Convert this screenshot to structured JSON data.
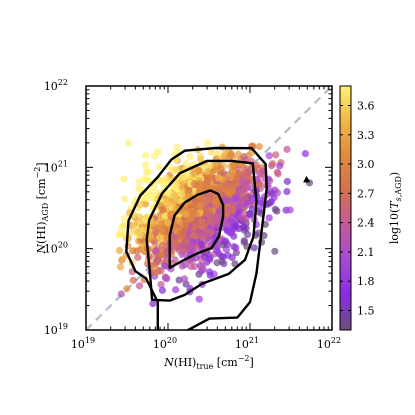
{
  "chart_data": {
    "type": "scatter",
    "title": "",
    "xlabel": "N(HI)_true [cm^-2]",
    "ylabel": "N(HI)_AGD [cm^-2]",
    "xscale": "log",
    "yscale": "log",
    "xlim": [
      1e+19,
      1e+22
    ],
    "ylim": [
      1e+19,
      1e+22
    ],
    "x_ticks": [
      {
        "value": 1e+19,
        "base": "10",
        "exp": "19"
      },
      {
        "value": 1e+20,
        "base": "10",
        "exp": "20"
      },
      {
        "value": 1e+21,
        "base": "10",
        "exp": "21"
      },
      {
        "value": 1e+22,
        "base": "10",
        "exp": "22"
      }
    ],
    "y_ticks": [
      {
        "value": 1e+19,
        "base": "10",
        "exp": "19"
      },
      {
        "value": 1e+20,
        "base": "10",
        "exp": "20"
      },
      {
        "value": 1e+21,
        "base": "10",
        "exp": "21"
      },
      {
        "value": 1e+22,
        "base": "10",
        "exp": "22"
      }
    ],
    "one_to_one_line": {
      "from": [
        1e+19,
        1e+19
      ],
      "to": [
        1e+22,
        1e+22
      ],
      "style": "dashed",
      "color": "#b0bcc8"
    },
    "colorbar": {
      "label": "log10(T_s,AGD)",
      "colormap": [
        "#6b4f7a",
        "#8a2be2",
        "#a64ad6",
        "#c45a9c",
        "#d4704f",
        "#e08a3c",
        "#f0b848",
        "#fff176"
      ],
      "range": [
        1.3,
        3.8
      ],
      "ticks": [
        "1.5",
        "1.8",
        "2.1",
        "2.4",
        "2.7",
        "3.0",
        "3.3",
        "3.6"
      ]
    },
    "contours": [
      {
        "level": "outer",
        "points": [
          [
            7.5e+19,
            8.2e+18
          ],
          [
            9e+19,
            9.7e+18
          ],
          [
            1.6e+20,
            9.5e+18
          ],
          [
            3.2e+20,
            1.38e+19
          ],
          [
            7e+20,
            1.42e+19
          ],
          [
            1e+21,
            2.2e+19
          ],
          [
            1.2e+21,
            5e+19
          ],
          [
            1.4e+21,
            1.8e+20
          ],
          [
            1.6e+21,
            5.5e+20
          ],
          [
            1.55e+21,
            1.1e+21
          ],
          [
            1.05e+21,
            1.72e+21
          ],
          [
            3.8e+20,
            1.73e+21
          ],
          [
            1.6e+20,
            1.6e+21
          ],
          [
            1.1e+20,
            1.25e+21
          ],
          [
            7.5e+19,
            7.6e+20
          ],
          [
            4.6e+19,
            4.5e+20
          ],
          [
            3.3e+19,
            2.2e+20
          ],
          [
            3.1e+19,
            9.2e+19
          ],
          [
            4e+19,
            5.3e+19
          ],
          [
            5.4e+19,
            4.3e+19
          ],
          [
            7.5e+19,
            2.2e+19
          ],
          [
            7.5e+19,
            8.2e+18
          ]
        ]
      },
      {
        "level": "middle",
        "points": [
          [
            6.4e+19,
            2.35e+19
          ],
          [
            1.05e+20,
            2.3e+19
          ],
          [
            1.6e+20,
            2.7e+19
          ],
          [
            2.6e+20,
            3.7e+19
          ],
          [
            5.5e+20,
            4.9e+19
          ],
          [
            8.7e+20,
            7.3e+19
          ],
          [
            1.1e+21,
            1.4e+20
          ],
          [
            1.2e+21,
            3.8e+20
          ],
          [
            1.08e+21,
            1.12e+21
          ],
          [
            6e+20,
            1.2e+21
          ],
          [
            3e+20,
            1.2e+21
          ],
          [
            1.4e+20,
            8.5e+20
          ],
          [
            8.5e+19,
            4.8e+20
          ],
          [
            5.9e+19,
            2.25e+20
          ],
          [
            5.5e+19,
            1.28e+20
          ],
          [
            6e+19,
            5.3e+19
          ],
          [
            6.4e+19,
            2.35e+19
          ]
        ]
      },
      {
        "level": "inner",
        "points": [
          [
            1.05e+20,
            5.8e+19
          ],
          [
            1.5e+20,
            7.1e+19
          ],
          [
            2.3e+20,
            8.8e+19
          ],
          [
            3.4e+20,
            1.02e+20
          ],
          [
            4.2e+20,
            1.43e+20
          ],
          [
            4.7e+20,
            2.48e+20
          ],
          [
            4.7e+20,
            3.45e+20
          ],
          [
            4.1e+20,
            4.7e+20
          ],
          [
            3.3e+20,
            5.2e+20
          ],
          [
            2.3e+20,
            4.6e+20
          ],
          [
            1.6e+20,
            3.7e+20
          ],
          [
            1.2e+20,
            2.55e+20
          ],
          [
            1.05e+20,
            1.45e+20
          ],
          [
            1.05e+20,
            8e+19
          ],
          [
            1.05e+20,
            5.8e+19
          ]
        ]
      }
    ],
    "outlier_marker": {
      "x": 4.9e+21,
      "y": 7e+20,
      "shape": "triangle"
    }
  }
}
